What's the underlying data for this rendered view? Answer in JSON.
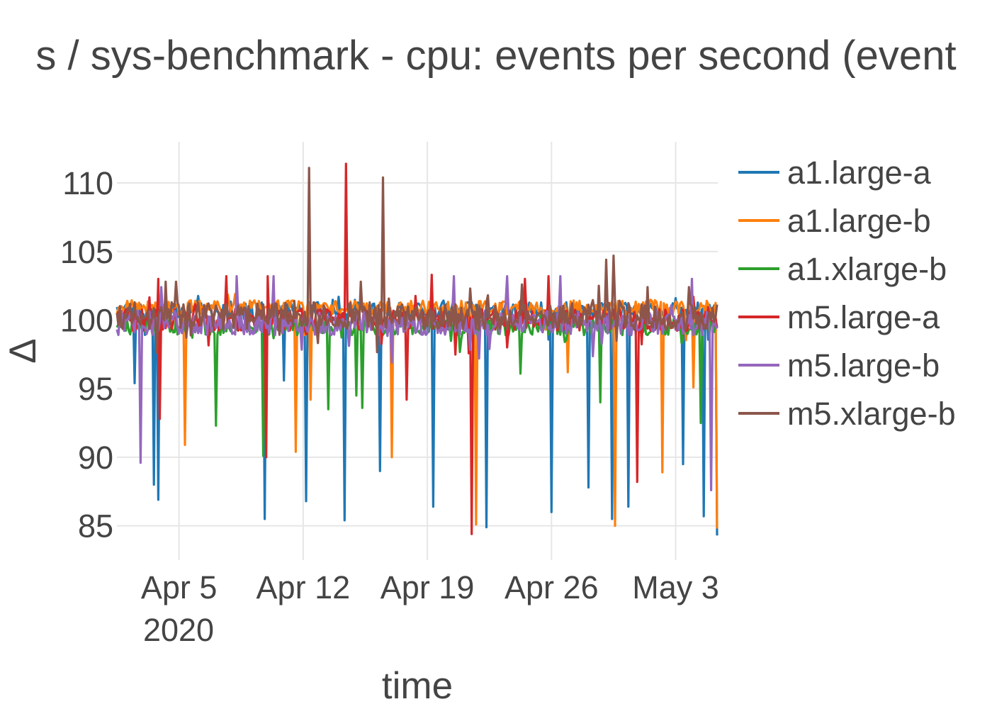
{
  "chart_data": {
    "type": "line",
    "title": "s / sys-benchmark - cpu: events per second (event",
    "xlabel": "time",
    "ylabel": "Δ",
    "x_tick_labels": [
      "Apr 5",
      "Apr 12",
      "Apr 19",
      "Apr 26",
      "May 3"
    ],
    "x_tick_dates": [
      "2020-04-05",
      "2020-04-12",
      "2020-04-19",
      "2020-04-26",
      "2020-05-03"
    ],
    "x_year_label": "2020",
    "xlim": [
      "2020-04-01T12:00",
      "2020-05-05T09:00"
    ],
    "y_ticks": [
      85,
      90,
      95,
      100,
      105,
      110
    ],
    "ylim": [
      82.5,
      113
    ],
    "grid": true,
    "legend_position": "right",
    "baseline": 100,
    "series": [
      {
        "name": "a1.large-a",
        "color": "#1f77b4",
        "noise": 0.6,
        "level": 100.7,
        "dips": [
          [
            "2020-04-02T12:00",
            95.4
          ],
          [
            "2020-04-03T15:00",
            88.0
          ],
          [
            "2020-04-03T20:00",
            86.9
          ],
          [
            "2020-04-09T20:00",
            85.5
          ],
          [
            "2020-04-10T23:00",
            95.6
          ],
          [
            "2020-04-12T05:00",
            86.8
          ],
          [
            "2020-04-14T09:00",
            85.4
          ],
          [
            "2020-04-16T08:00",
            89.0
          ],
          [
            "2020-04-19T09:00",
            86.4
          ],
          [
            "2020-04-22T08:00",
            84.9
          ],
          [
            "2020-04-26T01:00",
            86.0
          ],
          [
            "2020-04-28T02:00",
            87.8
          ],
          [
            "2020-04-29T11:00",
            85.5
          ],
          [
            "2020-04-30T09:00",
            86.4
          ],
          [
            "2020-05-03T10:00",
            89.5
          ],
          [
            "2020-05-04T15:00",
            85.7
          ],
          [
            "2020-05-05T08:00",
            84.3
          ]
        ],
        "spikes": [
          [
            "2020-04-14T00:00",
            101.7
          ],
          [
            "2020-05-03T00:00",
            101.6
          ]
        ]
      },
      {
        "name": "a1.large-b",
        "color": "#ff7f0e",
        "noise": 0.55,
        "level": 100.9,
        "dips": [
          [
            "2020-04-05T09:00",
            90.9
          ],
          [
            "2020-04-11T15:00",
            90.4
          ],
          [
            "2020-04-12T10:00",
            94.2
          ],
          [
            "2020-04-17T00:00",
            90.0
          ],
          [
            "2020-04-21T18:00",
            85.1
          ],
          [
            "2020-04-26T22:00",
            96.2
          ],
          [
            "2020-04-29T14:00",
            85.0
          ],
          [
            "2020-05-02T07:00",
            88.9
          ],
          [
            "2020-05-04T00:00",
            95.1
          ],
          [
            "2020-05-05T08:00",
            84.8
          ]
        ],
        "spikes": []
      },
      {
        "name": "a1.xlarge-b",
        "color": "#2ca02c",
        "noise": 0.6,
        "level": 99.5,
        "dips": [
          [
            "2020-04-07T02:00",
            92.3
          ],
          [
            "2020-04-09T19:00",
            90.1
          ],
          [
            "2020-04-13T11:00",
            93.5
          ],
          [
            "2020-04-15T01:00",
            94.5
          ],
          [
            "2020-04-15T08:00",
            93.6
          ],
          [
            "2020-04-24T07:00",
            96.1
          ],
          [
            "2020-04-28T18:00",
            94.0
          ],
          [
            "2020-05-04T10:00",
            92.5
          ]
        ],
        "spikes": []
      },
      {
        "name": "m5.large-a",
        "color": "#d62728",
        "noise": 0.8,
        "level": 100.0,
        "dips": [
          [
            "2020-04-03T22:00",
            92.8
          ],
          [
            "2020-04-09T23:00",
            90.0
          ],
          [
            "2020-04-17T21:00",
            94.2
          ],
          [
            "2020-04-21T13:00",
            84.4
          ],
          [
            "2020-04-30T20:00",
            88.2
          ]
        ],
        "spikes": [
          [
            "2020-04-03T21:00",
            103.0
          ],
          [
            "2020-04-07T16:00",
            103.2
          ],
          [
            "2020-04-10T01:00",
            103.2
          ],
          [
            "2020-04-14T11:00",
            111.4
          ],
          [
            "2020-04-19T07:00",
            103.3
          ],
          [
            "2020-04-24T13:00",
            103.0
          ],
          [
            "2020-04-25T20:00",
            103.2
          ],
          [
            "2020-05-04T00:00",
            101.7
          ]
        ]
      },
      {
        "name": "m5.large-b",
        "color": "#9467bd",
        "noise": 0.9,
        "level": 99.8,
        "dips": [
          [
            "2020-04-02T20:00",
            89.6
          ],
          [
            "2020-04-17T01:00",
            96.9
          ],
          [
            "2020-05-05T00:00",
            87.6
          ]
        ],
        "spikes": [
          [
            "2020-04-04T00:00",
            102.4
          ],
          [
            "2020-04-08T06:00",
            103.2
          ],
          [
            "2020-04-10T08:00",
            103.2
          ],
          [
            "2020-04-20T13:00",
            103.2
          ],
          [
            "2020-04-23T13:00",
            103.2
          ],
          [
            "2020-04-26T12:00",
            103.2
          ],
          [
            "2020-05-03T22:00",
            103.0
          ]
        ]
      },
      {
        "name": "m5.xlarge-b",
        "color": "#8c564b",
        "noise": 1.0,
        "level": 100.3,
        "dips": [],
        "spikes": [
          [
            "2020-04-04T06:00",
            102.8
          ],
          [
            "2020-04-04T20:00",
            102.8
          ],
          [
            "2020-04-12T09:00",
            111.1
          ],
          [
            "2020-04-15T07:00",
            102.8
          ],
          [
            "2020-04-16T12:00",
            110.4
          ],
          [
            "2020-04-21T11:00",
            102.3
          ],
          [
            "2020-04-24T08:00",
            102.6
          ],
          [
            "2020-04-28T16:00",
            102.5
          ],
          [
            "2020-04-29T02:00",
            104.4
          ],
          [
            "2020-04-29T13:00",
            104.7
          ],
          [
            "2020-05-01T10:00",
            102.4
          ],
          [
            "2020-05-03T19:00",
            102.4
          ]
        ]
      }
    ]
  }
}
